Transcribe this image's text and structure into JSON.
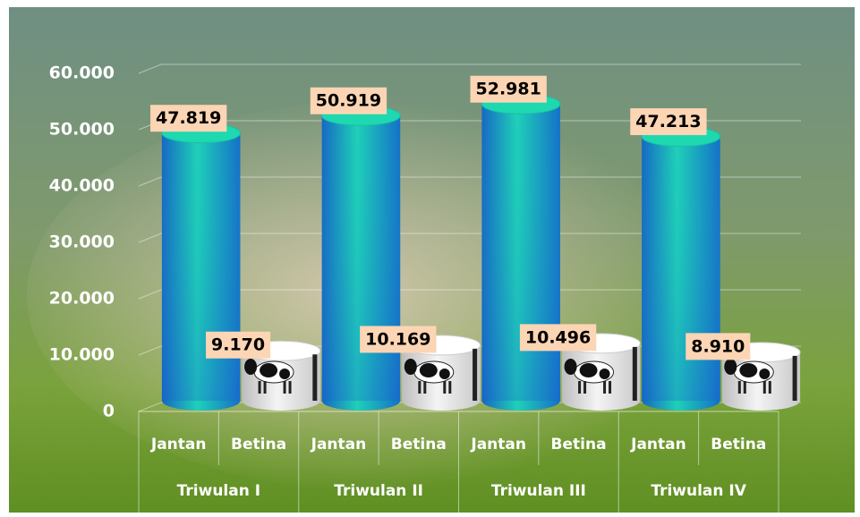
{
  "chart_data": {
    "type": "bar",
    "categories": [
      "Jantan",
      "Betina",
      "Jantan",
      "Betina",
      "Jantan",
      "Betina",
      "Jantan",
      "Betina"
    ],
    "groups": [
      "Triwulan I",
      "Triwulan II",
      "Triwulan III",
      "Triwulan IV"
    ],
    "values": [
      47819,
      9170,
      50919,
      10169,
      52981,
      10496,
      47213,
      8910
    ],
    "value_labels": [
      "47.819",
      "9.170",
      "50.919",
      "10.169",
      "52.981",
      "10.496",
      "47.213",
      "8.910"
    ],
    "colors": [
      "#1fd0b8",
      "#f4f4f4"
    ],
    "ylim": [
      0,
      60000
    ],
    "yticks": [
      0,
      {
        "value": 10000,
        "label": "10.000"
      },
      {
        "value": 20000,
        "label": "20.000"
      },
      {
        "value": 30000,
        "label": "30.000"
      },
      {
        "value": 40000,
        "label": "40.000"
      },
      {
        "value": 50000,
        "label": "50.000"
      },
      {
        "value": 60000,
        "label": "60.000"
      }
    ],
    "grid": true
  }
}
